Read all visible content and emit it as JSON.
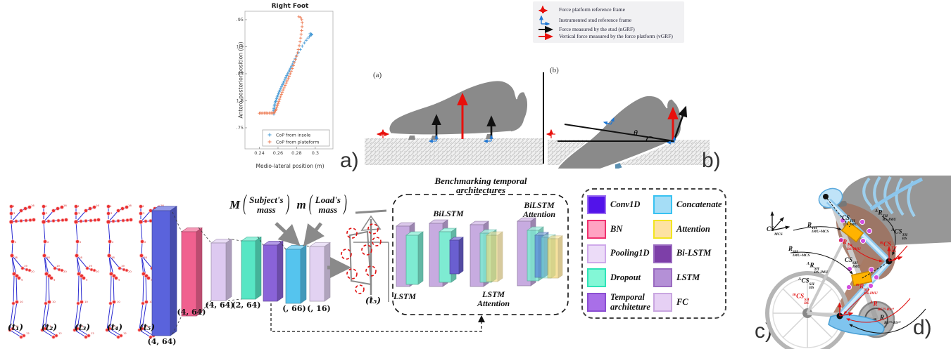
{
  "panel_labels": {
    "a": "a)",
    "b": "b)",
    "c": "c)",
    "d": "d)"
  },
  "chart_data": {
    "type": "scatter",
    "title": "Right Foot",
    "xlabel": "Medio-lateral position (m)",
    "ylabel": "Antero-posterior position (m)",
    "xlim": [
      0.2245,
      0.319
    ],
    "ylim": [
      1.711,
      1.9656
    ],
    "xticks": [
      "0.24",
      "0.26",
      "0.28",
      "0.3"
    ],
    "xtick_values": [
      0.24,
      0.26,
      0.28,
      0.3
    ],
    "yticks": [
      "1.75",
      "1.8",
      "1.85",
      "1.9",
      "1.95"
    ],
    "ytick_values": [
      1.75,
      1.8,
      1.85,
      1.9,
      1.95
    ],
    "grid": false,
    "legend_position": "inside-bottom",
    "series": [
      {
        "name": "CoP from insole",
        "color": "#4A9CD6",
        "marker": "+",
        "points": [
          [
            0.2555,
            1.7755
          ],
          [
            0.2553,
            1.7775
          ],
          [
            0.2555,
            1.7795
          ],
          [
            0.2554,
            1.7815
          ],
          [
            0.2556,
            1.7835
          ],
          [
            0.2557,
            1.7858
          ],
          [
            0.2559,
            1.788
          ],
          [
            0.2562,
            1.7905
          ],
          [
            0.2565,
            1.793
          ],
          [
            0.2569,
            1.7958
          ],
          [
            0.2574,
            1.7985
          ],
          [
            0.2579,
            1.8013
          ],
          [
            0.2585,
            1.8042
          ],
          [
            0.2591,
            1.8072
          ],
          [
            0.2598,
            1.8102
          ],
          [
            0.2605,
            1.8133
          ],
          [
            0.2613,
            1.8165
          ],
          [
            0.2621,
            1.8197
          ],
          [
            0.2629,
            1.823
          ],
          [
            0.2638,
            1.8263
          ],
          [
            0.2647,
            1.8296
          ],
          [
            0.2656,
            1.833
          ],
          [
            0.2665,
            1.8364
          ],
          [
            0.2675,
            1.8398
          ],
          [
            0.2684,
            1.8432
          ],
          [
            0.2694,
            1.8466
          ],
          [
            0.2704,
            1.85
          ],
          [
            0.2714,
            1.8534
          ],
          [
            0.2724,
            1.8568
          ],
          [
            0.2734,
            1.8602
          ],
          [
            0.2745,
            1.864
          ],
          [
            0.2757,
            1.868
          ],
          [
            0.277,
            1.8725
          ],
          [
            0.2784,
            1.8775
          ],
          [
            0.28,
            1.883
          ],
          [
            0.2818,
            1.889
          ],
          [
            0.2838,
            1.895
          ],
          [
            0.286,
            1.901
          ],
          [
            0.2882,
            1.907
          ],
          [
            0.2903,
            1.912
          ],
          [
            0.2922,
            1.916
          ],
          [
            0.2938,
            1.919
          ],
          [
            0.295,
            1.921
          ],
          [
            0.2958,
            1.922
          ],
          [
            0.2962,
            1.9225
          ],
          [
            0.2955,
            1.9235
          ],
          [
            0.2945,
            1.924
          ]
        ]
      },
      {
        "name": "CoP from plateform",
        "color": "#ED7D56",
        "marker": "+",
        "points": [
          [
            0.24,
            1.777
          ],
          [
            0.2413,
            1.7772
          ],
          [
            0.2426,
            1.777
          ],
          [
            0.2439,
            1.7773
          ],
          [
            0.2452,
            1.7771
          ],
          [
            0.2465,
            1.7774
          ],
          [
            0.2478,
            1.7772
          ],
          [
            0.2491,
            1.777
          ],
          [
            0.2504,
            1.7773
          ],
          [
            0.2517,
            1.7771
          ],
          [
            0.253,
            1.7774
          ],
          [
            0.2543,
            1.7772
          ],
          [
            0.2556,
            1.7775
          ],
          [
            0.2565,
            1.779
          ],
          [
            0.2573,
            1.7815
          ],
          [
            0.258,
            1.7845
          ],
          [
            0.2587,
            1.788
          ],
          [
            0.2594,
            1.7915
          ],
          [
            0.2601,
            1.7952
          ],
          [
            0.2609,
            1.799
          ],
          [
            0.2617,
            1.803
          ],
          [
            0.2626,
            1.8072
          ],
          [
            0.2635,
            1.8115
          ],
          [
            0.2645,
            1.8158
          ],
          [
            0.2655,
            1.82
          ],
          [
            0.2665,
            1.8242
          ],
          [
            0.2676,
            1.8285
          ],
          [
            0.2687,
            1.8328
          ],
          [
            0.2698,
            1.837
          ],
          [
            0.2709,
            1.8412
          ],
          [
            0.272,
            1.8455
          ],
          [
            0.2731,
            1.85
          ],
          [
            0.2742,
            1.8548
          ],
          [
            0.2753,
            1.8598
          ],
          [
            0.2764,
            1.865
          ],
          [
            0.2775,
            1.8705
          ],
          [
            0.2786,
            1.8762
          ],
          [
            0.2797,
            1.8822
          ],
          [
            0.2808,
            1.8885
          ],
          [
            0.2818,
            1.895
          ],
          [
            0.2828,
            1.902
          ],
          [
            0.2836,
            1.909
          ],
          [
            0.2843,
            1.916
          ],
          [
            0.2849,
            1.923
          ],
          [
            0.2854,
            1.93
          ],
          [
            0.2858,
            1.937
          ],
          [
            0.286,
            1.944
          ],
          [
            0.2855,
            1.95
          ],
          [
            0.2842,
            1.954
          ],
          [
            0.2825,
            1.9555
          ]
        ]
      }
    ]
  },
  "force_legend": {
    "items": [
      {
        "icon": "force-platform-frame-icon",
        "label": "Force platform reference frame",
        "color": "#e8100c"
      },
      {
        "icon": "stud-frame-icon",
        "label": "Instrumented stud reference frame",
        "color": "#1f77d4"
      },
      {
        "icon": "stud-force-arrow-icon",
        "label": "Force measured by the stud (nGRF)",
        "color": "#111111"
      },
      {
        "icon": "platform-force-arrow-icon",
        "label": "Vertical force measured by the force platform (vGRF)",
        "color": "#e8100c"
      }
    ]
  },
  "shoes": {
    "sub_a": "(a)",
    "sub_b": "(b)",
    "theta": "θ"
  },
  "network": {
    "time_labels": [
      "(t₁)",
      "(t₂)",
      "(t₃)",
      "(t₄)",
      "(t₅)"
    ],
    "joint_numbers": [
      "4",
      "3",
      "16",
      "2",
      "18",
      "19",
      "20",
      "9",
      "10",
      "11",
      "12"
    ],
    "conv_dim": "(4, 64)",
    "bn_dim": "(4, 64)",
    "pool_dim": "(4, 64)",
    "dropout_dim": "(2, 64)",
    "concat_dim": "(, 66)",
    "fc_dim": "(, 16)",
    "subject_var": "M",
    "subject_line1": "Subject's",
    "subject_line2": "mass",
    "load_var": "m",
    "load_line1": "Load's",
    "load_line2": "mass",
    "t5_label": "(t₅)",
    "bench_title_1": "Benchmarking temporal",
    "bench_title_2": "architectures",
    "bench_lstm": "LSTM",
    "bench_bilstm": "BiLSTM",
    "bench_lstm_att_1": "LSTM",
    "bench_lstm_att_2": "Attention",
    "bench_bilstm_att_1": "BiLSTM",
    "bench_bilstm_att_2": "Attention"
  },
  "nn_legend": {
    "left": [
      {
        "label": "Conv1D",
        "fill": "#5213ea",
        "border": "#9b6ef0"
      },
      {
        "label": "BN",
        "fill": "#ffa3c2",
        "border": "#f0316e"
      },
      {
        "label": "Pooling1D",
        "fill": "#ecdcf8",
        "border": "#cfa9ea"
      },
      {
        "label": "Dropout",
        "fill": "#83f7d6",
        "border": "#2fe3b8"
      },
      {
        "label": "Temporal architeture",
        "fill": "#a96fe8",
        "border": "#8b4fd1"
      }
    ],
    "right": [
      {
        "label": "Concatenate",
        "fill": "#a5ddf6",
        "border": "#38c2f2"
      },
      {
        "label": "Attention",
        "fill": "#fde2a2",
        "border": "#f2e520"
      },
      {
        "label": "Bi-LSTM",
        "fill": "#7d3fa8",
        "border": "#9a6bc0"
      },
      {
        "label": "LSTM",
        "fill": "#b490d6",
        "border": "#9a6bc0"
      },
      {
        "label": "FC",
        "fill": "#e6d0f4",
        "border": "#c9a6e0"
      }
    ]
  },
  "cyclist": {
    "labels": [
      {
        "pre": "",
        "base": "CS",
        "sup": "",
        "sub": "MCS",
        "color": "#111111"
      },
      {
        "pre": "",
        "base": "R",
        "sup": "TH",
        "sub": "IMU-MCS",
        "color": "#111111"
      },
      {
        "pre": "",
        "base": "R",
        "sup": "SH",
        "sub": "IMU-MCS",
        "color": "#111111"
      },
      {
        "pre": "",
        "base": "CS",
        "sup": "TH",
        "sub": "IMU",
        "color": "#111111"
      },
      {
        "pre": "A",
        "base": "R",
        "sup": "TH",
        "sub": "BS-IMU",
        "color": "#111111"
      },
      {
        "pre": "A",
        "base": "CS",
        "sup": "TH",
        "sub": "BS",
        "color": "#111111"
      },
      {
        "pre": "m",
        "base": "R",
        "sup": "TH",
        "sub": "BS-IMU",
        "color": "#e01010"
      },
      {
        "pre": "m",
        "base": "CS",
        "sup": "TH",
        "sub": "BS",
        "color": "#e01010"
      },
      {
        "pre": "A",
        "base": "R",
        "sup": "SH",
        "sub": "BS-IMU",
        "color": "#111111"
      },
      {
        "pre": "",
        "base": "CS",
        "sup": "SH",
        "sub": "IMU",
        "color": "#111111"
      },
      {
        "pre": "A",
        "base": "CS",
        "sup": "SH",
        "sub": "BS",
        "color": "#111111"
      },
      {
        "pre": "m",
        "base": "CS",
        "sup": "SH",
        "sub": "BS",
        "color": "#e01010"
      },
      {
        "pre": "m",
        "base": "R",
        "sup": "SH",
        "sub": "BS-IMU",
        "color": "#e01010"
      },
      {
        "pre": "A",
        "base": "R",
        "sup": "",
        "sub": "BSᵀᴴ-BSˢᴴ",
        "color": "#e01010"
      },
      {
        "pre": "",
        "base": "R",
        "sup": "",
        "sub": "BSᵀᴴ-BSˢᴴ",
        "color": "#111111"
      }
    ]
  }
}
